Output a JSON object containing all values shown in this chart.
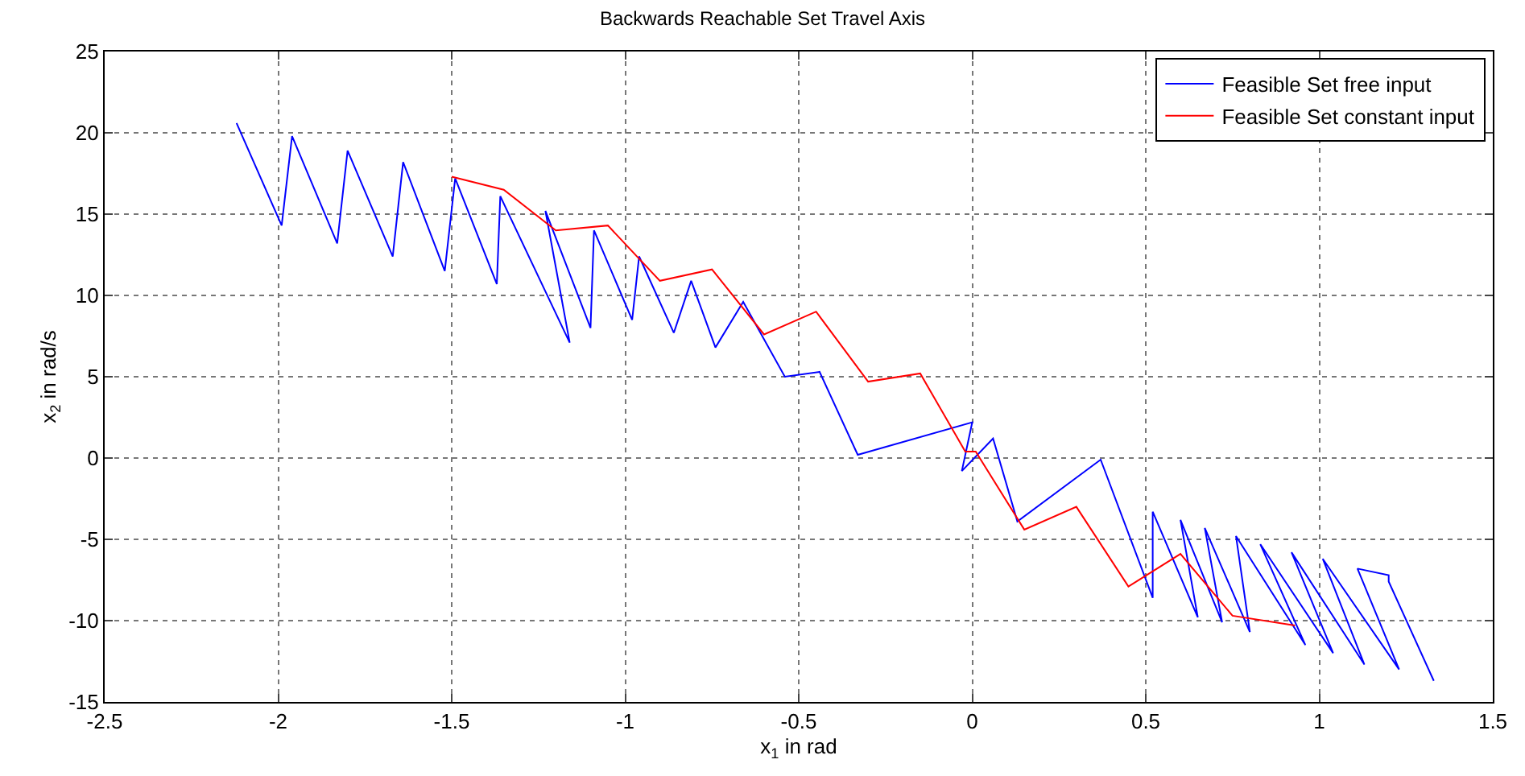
{
  "chart_data": {
    "type": "line",
    "title": "Backwards Reachable Set Travel Axis",
    "xlabel": "x$_{1}$ in rad",
    "ylabel": "x$_{2}$ in rad/s",
    "xlim": [
      -2.5,
      1.5
    ],
    "xticks": [
      -2.5,
      -2,
      -1.5,
      -1,
      -0.5,
      0,
      0.5,
      1,
      1.5
    ],
    "ylim": [
      -15,
      25
    ],
    "yticks": [
      -15,
      -10,
      -5,
      0,
      5,
      10,
      15,
      20,
      25
    ],
    "grid": true,
    "legend": "top right",
    "series": [
      {
        "name": "Feasible Set free input",
        "color": "#0000ff",
        "x": [
          -2.12,
          -1.99,
          -1.96,
          -1.83,
          -1.8,
          -1.67,
          -1.64,
          -1.52,
          -1.49,
          -1.37,
          -1.36,
          -1.16,
          -1.23,
          -1.1,
          -1.09,
          -0.98,
          -0.96,
          -0.86,
          -0.81,
          -0.74,
          -0.66,
          -0.54,
          -0.44,
          -0.33,
          0,
          -0.03,
          0.06,
          0.13,
          0.37,
          0.52,
          0.52,
          0.65,
          0.6,
          0.72,
          0.67,
          0.8,
          0.76,
          0.96,
          0.83,
          1.04,
          0.92,
          1.13,
          1.01,
          1.23,
          1.11,
          1.2,
          1.2,
          1.33
        ],
        "values": [
          20.6,
          14.3,
          19.8,
          13.2,
          18.9,
          12.4,
          18.2,
          11.5,
          17.2,
          10.7,
          16.1,
          7.1,
          15.2,
          8,
          14,
          8.5,
          12.4,
          7.7,
          10.9,
          6.8,
          9.6,
          5,
          5.3,
          0.2,
          2.2,
          -0.8,
          1.2,
          -3.9,
          -0.1,
          -8.6,
          -3.3,
          -9.8,
          -3.8,
          -10.1,
          -4.3,
          -10.7,
          -4.8,
          -11.5,
          -5.3,
          -12,
          -5.8,
          -12.7,
          -6.2,
          -13,
          -6.8,
          -7.2,
          -7.6,
          -13.7
        ]
      },
      {
        "name": "Feasible Set constant input",
        "color": "#ff0000",
        "x": [
          -1.5,
          -1.35,
          -1.2,
          -1.05,
          -0.9,
          -0.75,
          -0.6,
          -0.45,
          -0.3,
          -0.15,
          -0.02,
          0.01,
          0.15,
          0.3,
          0.45,
          0.6,
          0.75,
          0.93
        ],
        "values": [
          17.3,
          16.5,
          14,
          14.3,
          10.9,
          11.6,
          7.6,
          9,
          4.7,
          5.2,
          0.4,
          0.4,
          -4.4,
          -3,
          -7.9,
          -5.9,
          -9.7,
          -10.3
        ]
      }
    ]
  }
}
